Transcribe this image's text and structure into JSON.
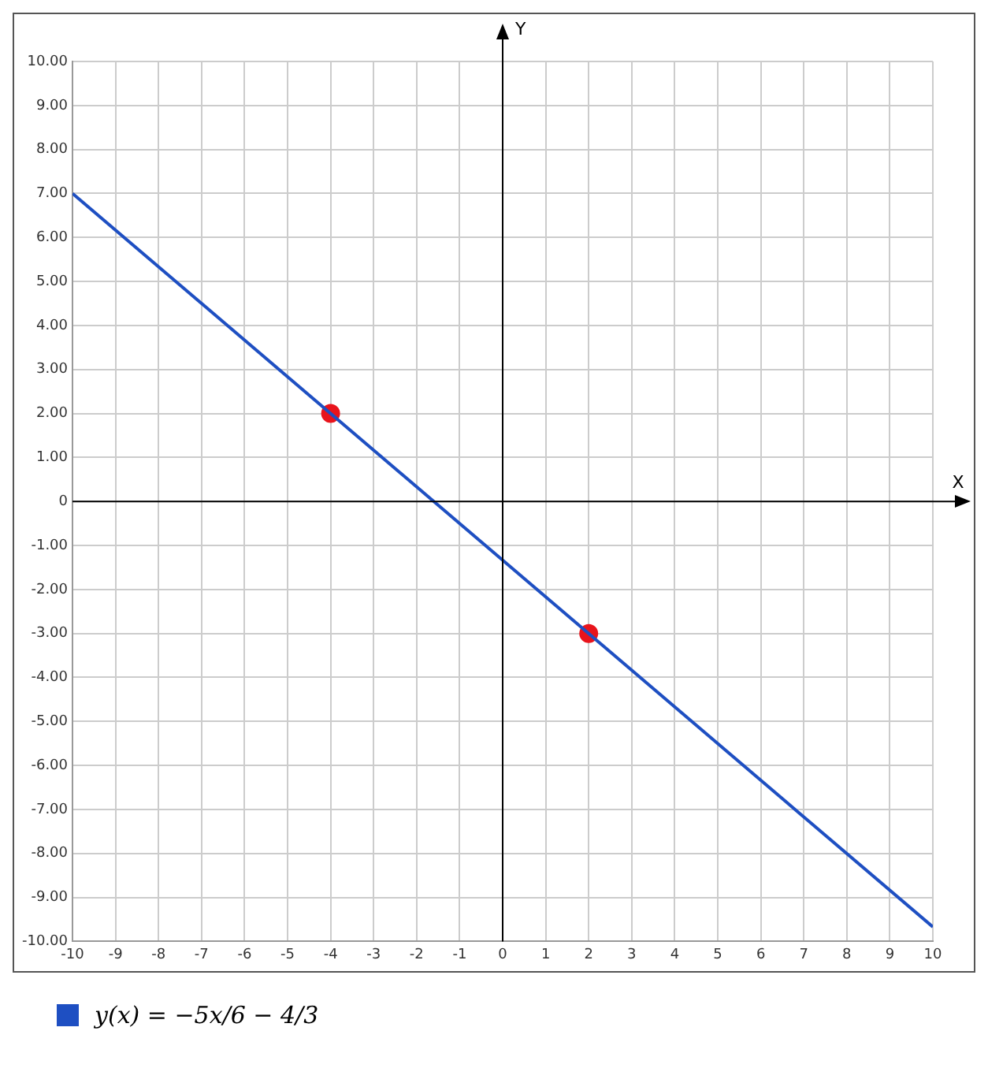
{
  "chart_data": {
    "type": "line",
    "xlabel": "X",
    "ylabel": "Y",
    "xlim": [
      -10,
      10
    ],
    "ylim": [
      -10,
      10
    ],
    "xticks": [
      -10,
      -9,
      -8,
      -7,
      -6,
      -5,
      -4,
      -3,
      -2,
      -1,
      0,
      1,
      2,
      3,
      4,
      5,
      6,
      7,
      8,
      9,
      10
    ],
    "yticks": [
      {
        "value": -10,
        "label": "-10.00"
      },
      {
        "value": -9,
        "label": "-9.00"
      },
      {
        "value": -8,
        "label": "-8.00"
      },
      {
        "value": -7,
        "label": "-7.00"
      },
      {
        "value": -6,
        "label": "-6.00"
      },
      {
        "value": -5,
        "label": "-5.00"
      },
      {
        "value": -4,
        "label": "-4.00"
      },
      {
        "value": -3,
        "label": "-3.00"
      },
      {
        "value": -2,
        "label": "-2.00"
      },
      {
        "value": -1,
        "label": "-1.00"
      },
      0,
      {
        "value": 1,
        "label": "1.00"
      },
      {
        "value": 2,
        "label": "2.00"
      },
      {
        "value": 3,
        "label": "3.00"
      },
      {
        "value": 4,
        "label": "4.00"
      },
      {
        "value": 5,
        "label": "5.00"
      },
      {
        "value": 6,
        "label": "6.00"
      },
      {
        "value": 7,
        "label": "7.00"
      },
      {
        "value": 8,
        "label": "8.00"
      },
      {
        "value": 9,
        "label": "9.00"
      },
      {
        "value": 10,
        "label": "10.00"
      }
    ],
    "grid": true,
    "legend": "bottom",
    "series": [
      {
        "name": "y(x) = −5x/6 − 4/3",
        "color": "#1e4fc2",
        "x": [
          -10,
          10
        ],
        "values": [
          7,
          -9.67
        ],
        "marker": "none",
        "line_style": "solid"
      },
      {
        "type": "scatter",
        "color": "#e8141c",
        "x": [
          -4,
          2
        ],
        "values": [
          2,
          -3
        ],
        "marker": "circle"
      }
    ]
  }
}
